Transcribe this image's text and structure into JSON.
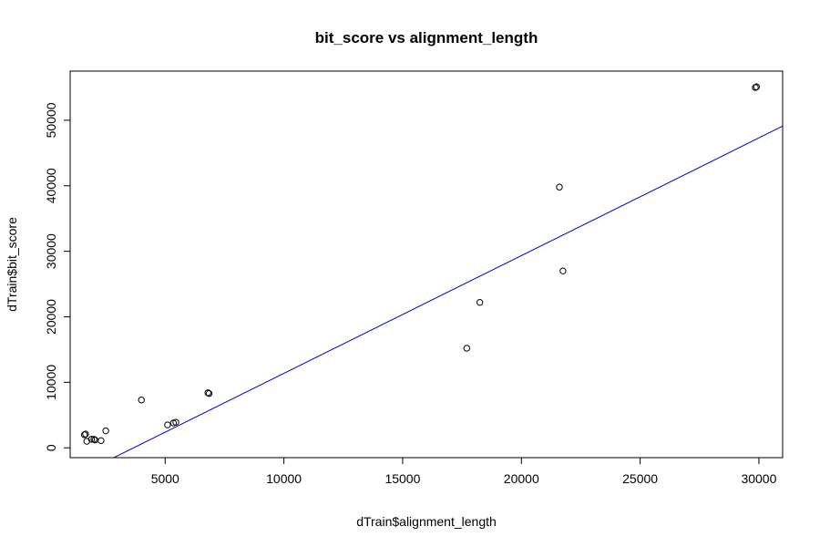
{
  "chart_data": {
    "type": "scatter",
    "title": "bit_score vs alignment_length",
    "xlabel": "dTrain$alignment_length",
    "ylabel": "dTrain$bit_score",
    "xlim": [
      1000,
      31000
    ],
    "ylim": [
      -1500,
      57500
    ],
    "xticks": [
      5000,
      10000,
      15000,
      20000,
      25000,
      30000
    ],
    "yticks": [
      0,
      10000,
      20000,
      30000,
      40000,
      50000
    ],
    "grid": false,
    "legend": "none",
    "point_color": "#000000",
    "line_color": "#0000cc",
    "points": [
      {
        "x": 1600,
        "y": 2000
      },
      {
        "x": 1650,
        "y": 2100
      },
      {
        "x": 1700,
        "y": 1000
      },
      {
        "x": 1900,
        "y": 1300
      },
      {
        "x": 2000,
        "y": 1300
      },
      {
        "x": 2050,
        "y": 1200
      },
      {
        "x": 2300,
        "y": 1100
      },
      {
        "x": 2500,
        "y": 2600
      },
      {
        "x": 4000,
        "y": 7300
      },
      {
        "x": 5100,
        "y": 3500
      },
      {
        "x": 5350,
        "y": 3800
      },
      {
        "x": 5450,
        "y": 3900
      },
      {
        "x": 6800,
        "y": 8400
      },
      {
        "x": 6850,
        "y": 8300
      },
      {
        "x": 17700,
        "y": 15200
      },
      {
        "x": 18250,
        "y": 22200
      },
      {
        "x": 21600,
        "y": 39800
      },
      {
        "x": 21750,
        "y": 27000
      },
      {
        "x": 29850,
        "y": 55000
      },
      {
        "x": 29900,
        "y": 55100
      }
    ],
    "fit_line": {
      "x": [
        1000,
        31000
      ],
      "y": [
        -4800,
        49100
      ]
    }
  }
}
